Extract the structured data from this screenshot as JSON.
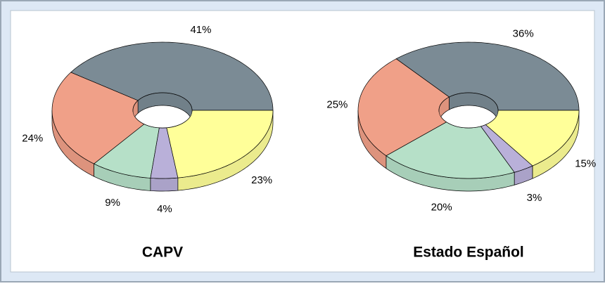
{
  "chart_data": [
    {
      "type": "pie",
      "title": "CAPV",
      "values": [
        41,
        24,
        9,
        4,
        23
      ],
      "value_labels": [
        "41%",
        "24%",
        "9%",
        "4%",
        "23%"
      ],
      "colors": [
        "#7b8b95",
        "#f0a088",
        "#b6e0c8",
        "#b9b0d9",
        "#ffff99"
      ]
    },
    {
      "type": "pie",
      "title": "Estado Español",
      "values": [
        36,
        25,
        20,
        3,
        15
      ],
      "value_labels": [
        "36%",
        "25%",
        "20%",
        "3%",
        "15%"
      ],
      "colors": [
        "#7b8b95",
        "#f0a088",
        "#b6e0c8",
        "#b9b0d9",
        "#ffff99"
      ]
    }
  ]
}
